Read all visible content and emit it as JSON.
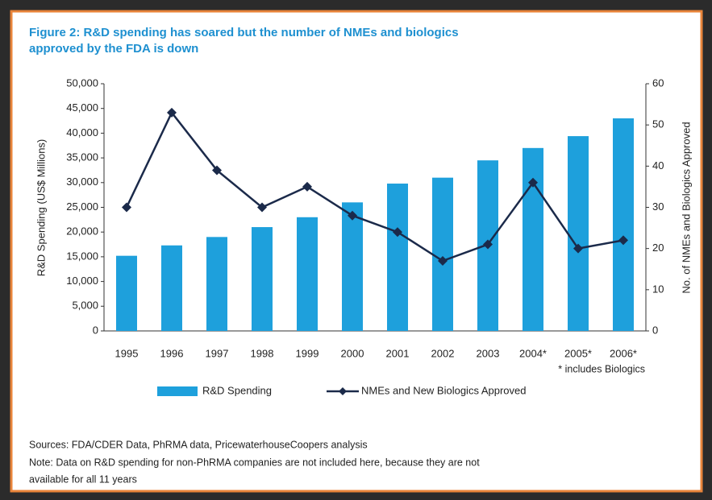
{
  "chart_data": {
    "type": "bar_line",
    "title": [
      "Figure 2: R&D spending has soared but the number of NMEs and biologics",
      "approved by the FDA is down"
    ],
    "categories": [
      "1995",
      "1996",
      "1997",
      "1998",
      "1999",
      "2000",
      "2001",
      "2002",
      "2003",
      "2004*",
      "2005*",
      "2006*"
    ],
    "footnote": "* includes Biologics",
    "y_label": "R&D Spending (US$ Millions)",
    "y2_label": "No. of NMEs and Biologics Approved",
    "ylim": [
      0,
      50000
    ],
    "yticks": [
      0,
      {
        "value": 5000,
        "label": "5,000"
      },
      {
        "value": 10000,
        "label": "10,000"
      },
      {
        "value": 15000,
        "label": "15,000"
      },
      {
        "value": 20000,
        "label": "20,000"
      },
      {
        "value": 25000,
        "label": "25,000"
      },
      {
        "value": 30000,
        "label": "30,000"
      },
      {
        "value": 35000,
        "label": "35,000"
      },
      {
        "value": 40000,
        "label": "40,000"
      },
      {
        "value": 45000,
        "label": "45,000"
      },
      {
        "value": 50000,
        "label": "50,000"
      }
    ],
    "y2lim": [
      0,
      60
    ],
    "y2ticks": [
      0,
      10,
      20,
      30,
      40,
      50,
      60
    ],
    "series": [
      {
        "name": "R&D Spending",
        "color": "#1ea0dc",
        "kind": "bar",
        "values": [
          15200,
          17300,
          19000,
          21000,
          23000,
          26000,
          29800,
          31000,
          34500,
          37000,
          39400,
          43000
        ]
      },
      {
        "name": "NMEs and New Biologics Approved",
        "color": "#1b2a4a",
        "kind": "line",
        "axis": "y2",
        "values": [
          30,
          53,
          39,
          30,
          35,
          28,
          24,
          17,
          21,
          36,
          20,
          22
        ]
      }
    ],
    "sources": "Sources: FDA/CDER Data, PhRMA data, PricewaterhouseCoopers analysis",
    "note": [
      "Note: Data on R&D spending for non-PhRMA companies are not included here, because they are not",
      "available for all 11 years"
    ]
  }
}
